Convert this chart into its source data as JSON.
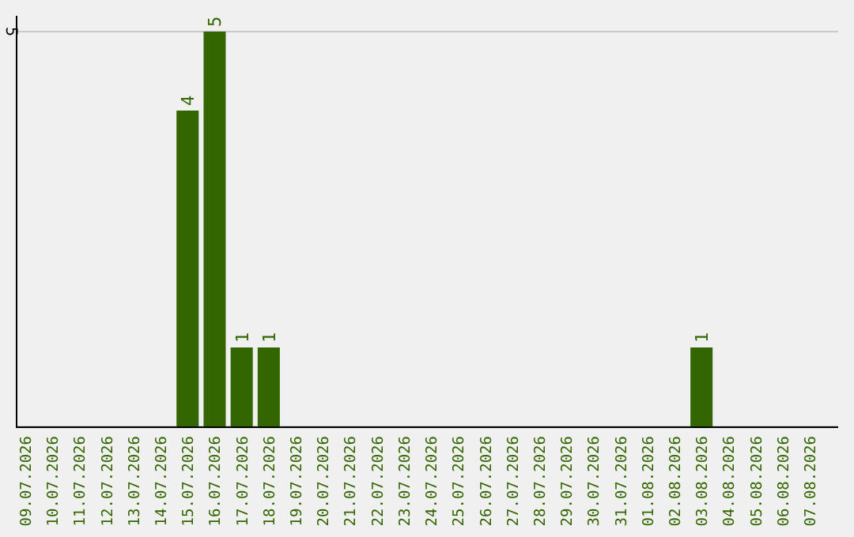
{
  "chart_data": {
    "type": "bar",
    "categories": [
      "09.07.2026",
      "10.07.2026",
      "11.07.2026",
      "12.07.2026",
      "13.07.2026",
      "14.07.2026",
      "15.07.2026",
      "16.07.2026",
      "17.07.2026",
      "18.07.2026",
      "19.07.2026",
      "20.07.2026",
      "21.07.2026",
      "22.07.2026",
      "23.07.2026",
      "24.07.2026",
      "25.07.2026",
      "26.07.2026",
      "27.07.2026",
      "28.07.2026",
      "29.07.2026",
      "30.07.2026",
      "31.07.2026",
      "01.08.2026",
      "02.08.2026",
      "03.08.2026",
      "04.08.2026",
      "05.08.2026",
      "06.08.2026",
      "07.08.2026"
    ],
    "values": [
      0,
      0,
      0,
      0,
      0,
      0,
      4,
      5,
      1,
      1,
      0,
      0,
      0,
      0,
      0,
      0,
      0,
      0,
      0,
      0,
      0,
      0,
      0,
      0,
      0,
      1,
      0,
      0,
      0,
      0
    ],
    "value_labels": [
      null,
      null,
      null,
      null,
      null,
      null,
      "4",
      "5",
      "1",
      "1",
      null,
      null,
      null,
      null,
      null,
      null,
      null,
      null,
      null,
      null,
      null,
      null,
      null,
      null,
      null,
      "1",
      null,
      null,
      null,
      null
    ],
    "color": "#336600",
    "ylim": [
      0,
      5
    ],
    "yticks": [
      {
        "value": 0,
        "label": null
      },
      5
    ],
    "grid": "y"
  }
}
